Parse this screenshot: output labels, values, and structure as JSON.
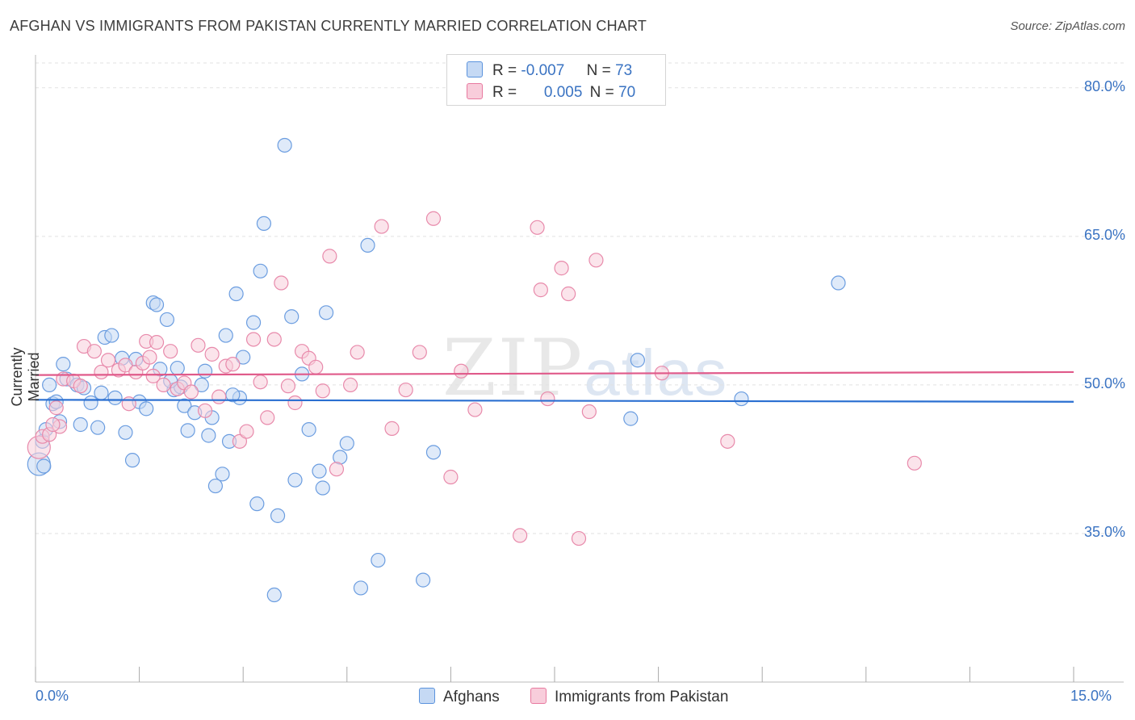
{
  "title": "AFGHAN VS IMMIGRANTS FROM PAKISTAN CURRENTLY MARRIED CORRELATION CHART",
  "source": "Source: ZipAtlas.com",
  "watermark": {
    "zip": "ZIP",
    "atlas": "atlas"
  },
  "legend": {
    "row1": {
      "r_label": "R =",
      "r_value": "-0.007",
      "n_label": "N =",
      "n_value": "73"
    },
    "row2": {
      "r_label": "R =",
      "r_value": "0.005",
      "n_label": "N =",
      "n_value": "70"
    }
  },
  "bottom_legend": {
    "afghans": "Afghans",
    "pakistan": "Immigrants from Pakistan"
  },
  "colors": {
    "blue": "#5b93dd",
    "blue_fill": "#c5d9f4",
    "pink": "#e87aa0",
    "pink_fill": "#f8cddb",
    "blue_line": "#2a6fd1",
    "pink_line": "#e05a8a",
    "axis_text": "#3a73c2"
  },
  "chart_data": {
    "type": "scatter",
    "title": "AFGHAN VS IMMIGRANTS FROM PAKISTAN CURRENTLY MARRIED CORRELATION CHART",
    "xlabel": "",
    "ylabel": "Currently Married",
    "xlim": [
      0,
      15
    ],
    "ylim": [
      20,
      83
    ],
    "x_tick_labels": [
      "0.0%",
      "15.0%"
    ],
    "y_ticks": [
      35,
      50,
      65,
      80
    ],
    "y_tick_labels": [
      "35.0%",
      "50.0%",
      "65.0%",
      "80.0%"
    ],
    "series": [
      {
        "name": "Afghans",
        "R": -0.007,
        "N": 73,
        "trend": {
          "x": [
            0,
            15
          ],
          "y": [
            48.5,
            48.3
          ]
        },
        "points": [
          [
            0.05,
            42.0
          ],
          [
            0.1,
            44.3
          ],
          [
            0.15,
            45.5
          ],
          [
            0.2,
            50.0
          ],
          [
            0.25,
            48.1
          ],
          [
            0.3,
            48.3
          ],
          [
            0.35,
            46.3
          ],
          [
            0.4,
            52.1
          ],
          [
            0.45,
            50.6
          ],
          [
            0.6,
            50.0
          ],
          [
            0.7,
            49.7
          ],
          [
            0.8,
            48.2
          ],
          [
            0.9,
            45.7
          ],
          [
            0.95,
            49.2
          ],
          [
            1.0,
            54.8
          ],
          [
            1.1,
            55.0
          ],
          [
            1.15,
            48.7
          ],
          [
            1.25,
            52.7
          ],
          [
            1.3,
            45.2
          ],
          [
            1.4,
            42.4
          ],
          [
            1.45,
            52.6
          ],
          [
            1.5,
            48.3
          ],
          [
            1.6,
            47.6
          ],
          [
            1.7,
            58.3
          ],
          [
            1.75,
            58.1
          ],
          [
            1.8,
            51.6
          ],
          [
            1.9,
            56.6
          ],
          [
            2.0,
            49.5
          ],
          [
            2.05,
            51.7
          ],
          [
            2.1,
            49.8
          ],
          [
            2.15,
            47.9
          ],
          [
            2.2,
            45.4
          ],
          [
            2.3,
            47.2
          ],
          [
            2.4,
            50.0
          ],
          [
            2.45,
            51.4
          ],
          [
            2.5,
            44.9
          ],
          [
            2.55,
            46.7
          ],
          [
            2.6,
            39.8
          ],
          [
            2.7,
            41.0
          ],
          [
            2.75,
            55.0
          ],
          [
            2.8,
            44.3
          ],
          [
            2.9,
            59.2
          ],
          [
            2.95,
            48.7
          ],
          [
            3.0,
            52.8
          ],
          [
            3.15,
            56.3
          ],
          [
            3.2,
            38.0
          ],
          [
            3.25,
            61.5
          ],
          [
            3.3,
            66.3
          ],
          [
            3.45,
            28.8
          ],
          [
            3.5,
            36.8
          ],
          [
            3.6,
            74.2
          ],
          [
            3.7,
            56.9
          ],
          [
            3.75,
            40.4
          ],
          [
            3.85,
            51.1
          ],
          [
            3.95,
            45.5
          ],
          [
            4.1,
            41.3
          ],
          [
            4.15,
            39.6
          ],
          [
            4.2,
            57.3
          ],
          [
            4.4,
            42.7
          ],
          [
            4.5,
            44.1
          ],
          [
            4.7,
            29.5
          ],
          [
            4.8,
            64.1
          ],
          [
            4.95,
            32.3
          ],
          [
            5.6,
            30.3
          ],
          [
            5.75,
            43.2
          ],
          [
            8.6,
            46.6
          ],
          [
            8.7,
            52.5
          ],
          [
            10.2,
            48.6
          ],
          [
            11.6,
            60.3
          ],
          [
            0.12,
            41.8
          ],
          [
            0.65,
            46.0
          ],
          [
            1.95,
            50.4
          ],
          [
            2.85,
            49.0
          ]
        ]
      },
      {
        "name": "Immigrants from Pakistan",
        "R": 0.005,
        "N": 70,
        "trend": {
          "x": [
            0,
            15
          ],
          "y": [
            51.0,
            51.3
          ]
        },
        "points": [
          [
            0.05,
            43.7
          ],
          [
            0.1,
            44.8
          ],
          [
            0.2,
            45.0
          ],
          [
            0.3,
            47.7
          ],
          [
            0.35,
            45.8
          ],
          [
            0.4,
            50.6
          ],
          [
            0.55,
            50.4
          ],
          [
            0.65,
            49.9
          ],
          [
            0.7,
            53.9
          ],
          [
            0.85,
            53.4
          ],
          [
            0.95,
            51.3
          ],
          [
            1.05,
            52.5
          ],
          [
            1.2,
            51.5
          ],
          [
            1.3,
            52.0
          ],
          [
            1.35,
            48.1
          ],
          [
            1.45,
            51.3
          ],
          [
            1.55,
            52.2
          ],
          [
            1.6,
            54.4
          ],
          [
            1.65,
            52.8
          ],
          [
            1.7,
            50.9
          ],
          [
            1.75,
            54.3
          ],
          [
            1.85,
            50.0
          ],
          [
            1.95,
            53.4
          ],
          [
            2.05,
            49.6
          ],
          [
            2.15,
            50.2
          ],
          [
            2.25,
            49.3
          ],
          [
            2.35,
            54.0
          ],
          [
            2.45,
            47.4
          ],
          [
            2.55,
            53.1
          ],
          [
            2.65,
            48.8
          ],
          [
            2.75,
            51.9
          ],
          [
            2.85,
            52.1
          ],
          [
            2.95,
            44.3
          ],
          [
            3.05,
            45.3
          ],
          [
            3.15,
            54.6
          ],
          [
            3.25,
            50.3
          ],
          [
            3.35,
            46.7
          ],
          [
            3.45,
            54.6
          ],
          [
            3.55,
            60.3
          ],
          [
            3.65,
            49.9
          ],
          [
            3.75,
            48.2
          ],
          [
            3.85,
            53.4
          ],
          [
            3.95,
            52.7
          ],
          [
            4.05,
            51.8
          ],
          [
            4.15,
            49.4
          ],
          [
            4.25,
            63.0
          ],
          [
            4.35,
            41.5
          ],
          [
            4.55,
            50.0
          ],
          [
            4.65,
            53.3
          ],
          [
            5.0,
            66.0
          ],
          [
            5.15,
            45.6
          ],
          [
            5.35,
            49.5
          ],
          [
            5.55,
            53.3
          ],
          [
            5.75,
            66.8
          ],
          [
            6.0,
            40.7
          ],
          [
            6.15,
            51.4
          ],
          [
            6.35,
            47.5
          ],
          [
            7.0,
            34.8
          ],
          [
            7.25,
            65.9
          ],
          [
            7.3,
            59.6
          ],
          [
            7.4,
            48.6
          ],
          [
            7.6,
            61.8
          ],
          [
            7.7,
            59.2
          ],
          [
            7.85,
            34.5
          ],
          [
            8.0,
            47.3
          ],
          [
            8.1,
            62.6
          ],
          [
            9.05,
            51.2
          ],
          [
            10.0,
            44.3
          ],
          [
            12.7,
            42.1
          ],
          [
            0.25,
            46.0
          ]
        ]
      }
    ]
  }
}
